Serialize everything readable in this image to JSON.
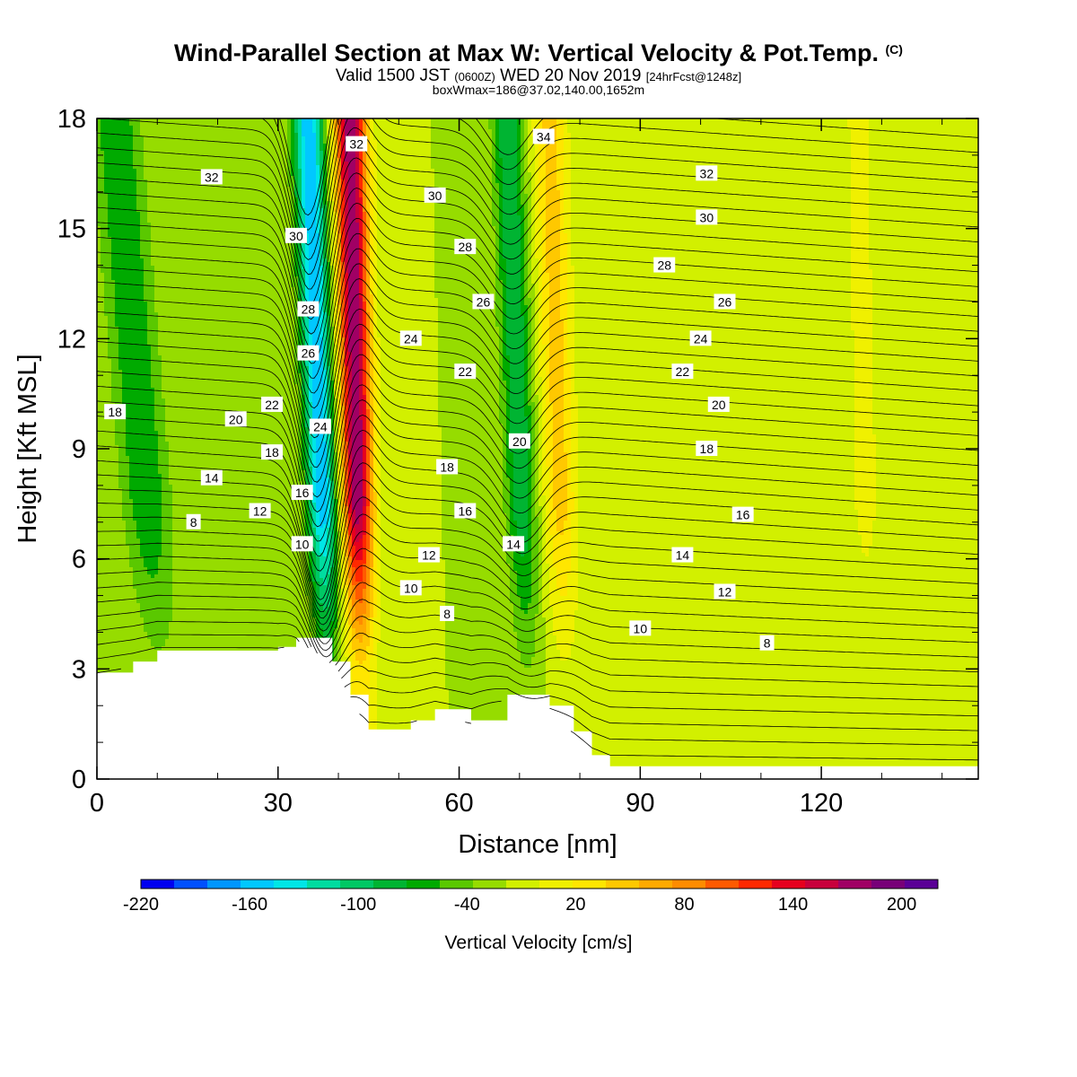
{
  "header": {
    "title": "Wind-Parallel Section at Max W: Vertical Velocity & Pot.Temp.",
    "copyright": "(C)",
    "valid_prefix": "Valid 1500 JST",
    "valid_utc": "(0600Z)",
    "valid_date": "WED 20 Nov 2019",
    "forecast": "[24hrFcst@1248z]",
    "box_info": "boxWmax=186@37.02,140.00,1652m"
  },
  "chart_data": {
    "type": "heatmap",
    "xlabel": "Distance [nm]",
    "ylabel": "Height [Kft MSL]",
    "xlim": [
      0,
      146
    ],
    "ylim": [
      0,
      18
    ],
    "x_ticks": [
      "0",
      "30",
      "60",
      "90",
      "120"
    ],
    "y_ticks": [
      "0",
      "3",
      "6",
      "9",
      "12",
      "15",
      "18"
    ],
    "background_w": 0,
    "updrafts": [
      {
        "x_bottom": 44,
        "x_top": 42,
        "peak_w": 220,
        "width_nm": 2.6
      },
      {
        "x_bottom": 78,
        "x_top": 75,
        "peak_w": 70,
        "width_nm": 2.8
      },
      {
        "x_bottom": 128,
        "x_top": 126,
        "peak_w": 25,
        "width_nm": 3
      },
      {
        "x_bottom": 135,
        "x_top": 135,
        "peak_w": 12,
        "width_nm": 5
      }
    ],
    "downdrafts": [
      {
        "x_bottom": 39,
        "x_top": 35,
        "peak_w": -160,
        "width_nm": 2.5
      },
      {
        "x_bottom": 72,
        "x_top": 68,
        "peak_w": -80,
        "width_nm": 2.5
      },
      {
        "x_bottom": 12,
        "x_top": 3,
        "peak_w": -60,
        "width_nm": 4
      }
    ],
    "terrain_top_kft": [
      {
        "x": 0,
        "h": 2.9
      },
      {
        "x": 6,
        "h": 3.2
      },
      {
        "x": 10,
        "h": 3.5
      },
      {
        "x": 30,
        "h": 3.6
      },
      {
        "x": 33,
        "h": 3.85
      },
      {
        "x": 39,
        "h": 3.2
      },
      {
        "x": 42,
        "h": 2.3
      },
      {
        "x": 45,
        "h": 1.35
      },
      {
        "x": 52,
        "h": 1.6
      },
      {
        "x": 56,
        "h": 1.9
      },
      {
        "x": 62,
        "h": 1.6
      },
      {
        "x": 68,
        "h": 2.3
      },
      {
        "x": 75,
        "h": 2.0
      },
      {
        "x": 79,
        "h": 1.3
      },
      {
        "x": 82,
        "h": 0.65
      },
      {
        "x": 85,
        "h": 0.35
      },
      {
        "x": 146,
        "h": 0.35
      }
    ],
    "colorbar": {
      "title": "Vertical Velocity [cm/s]",
      "min": -220,
      "max": 220,
      "step": 20,
      "tick_labels": [
        "-220",
        "-160",
        "-100",
        "-40",
        "20",
        "80",
        "140",
        "200"
      ],
      "colors": [
        "#0000f0",
        "#0050ff",
        "#0096ff",
        "#00c8ff",
        "#00e6e6",
        "#00dca0",
        "#00c864",
        "#00b432",
        "#00aa00",
        "#5ac800",
        "#96dc00",
        "#d2f000",
        "#f0f000",
        "#ffe600",
        "#ffc800",
        "#ffaa00",
        "#ff8c00",
        "#ff5a00",
        "#ff2800",
        "#e6001e",
        "#c8003c",
        "#a00064",
        "#780078",
        "#5a0096"
      ]
    },
    "theta_contours_c": [
      8,
      10,
      12,
      14,
      16,
      18,
      20,
      22,
      24,
      26,
      28,
      30,
      32,
      34
    ],
    "contour_labels": [
      {
        "text": "8",
        "x": 16,
        "y": 7.0
      },
      {
        "text": "8",
        "x": 58,
        "y": 4.5
      },
      {
        "text": "8",
        "x": 111,
        "y": 3.7
      },
      {
        "text": "10",
        "x": 34,
        "y": 6.4
      },
      {
        "text": "10",
        "x": 52,
        "y": 5.2
      },
      {
        "text": "10",
        "x": 90,
        "y": 4.1
      },
      {
        "text": "12",
        "x": 27,
        "y": 7.3
      },
      {
        "text": "12",
        "x": 55,
        "y": 6.1
      },
      {
        "text": "12",
        "x": 104,
        "y": 5.1
      },
      {
        "text": "14",
        "x": 19,
        "y": 8.2
      },
      {
        "text": "14",
        "x": 69,
        "y": 6.4
      },
      {
        "text": "14",
        "x": 97,
        "y": 6.1
      },
      {
        "text": "16",
        "x": 34,
        "y": 7.8
      },
      {
        "text": "16",
        "x": 61,
        "y": 7.3
      },
      {
        "text": "16",
        "x": 107,
        "y": 7.2
      },
      {
        "text": "18",
        "x": 3,
        "y": 10.0
      },
      {
        "text": "18",
        "x": 29,
        "y": 8.9
      },
      {
        "text": "18",
        "x": 58,
        "y": 8.5
      },
      {
        "text": "18",
        "x": 101,
        "y": 9.0
      },
      {
        "text": "20",
        "x": 23,
        "y": 9.8
      },
      {
        "text": "20",
        "x": 70,
        "y": 9.2
      },
      {
        "text": "20",
        "x": 103,
        "y": 10.2
      },
      {
        "text": "22",
        "x": 29,
        "y": 10.2
      },
      {
        "text": "22",
        "x": 61,
        "y": 11.1
      },
      {
        "text": "22",
        "x": 97,
        "y": 11.1
      },
      {
        "text": "24",
        "x": 37,
        "y": 9.6
      },
      {
        "text": "24",
        "x": 52,
        "y": 12.0
      },
      {
        "text": "24",
        "x": 100,
        "y": 12.0
      },
      {
        "text": "26",
        "x": 35,
        "y": 11.6
      },
      {
        "text": "26",
        "x": 64,
        "y": 13.0
      },
      {
        "text": "26",
        "x": 104,
        "y": 13.0
      },
      {
        "text": "28",
        "x": 35,
        "y": 12.8
      },
      {
        "text": "28",
        "x": 61,
        "y": 14.5
      },
      {
        "text": "28",
        "x": 94,
        "y": 14.0
      },
      {
        "text": "30",
        "x": 33,
        "y": 14.8
      },
      {
        "text": "30",
        "x": 56,
        "y": 15.9
      },
      {
        "text": "30",
        "x": 101,
        "y": 15.3
      },
      {
        "text": "32",
        "x": 19,
        "y": 16.4
      },
      {
        "text": "32",
        "x": 43,
        "y": 17.3
      },
      {
        "text": "32",
        "x": 101,
        "y": 16.5
      },
      {
        "text": "34",
        "x": 74,
        "y": 17.5
      }
    ]
  }
}
